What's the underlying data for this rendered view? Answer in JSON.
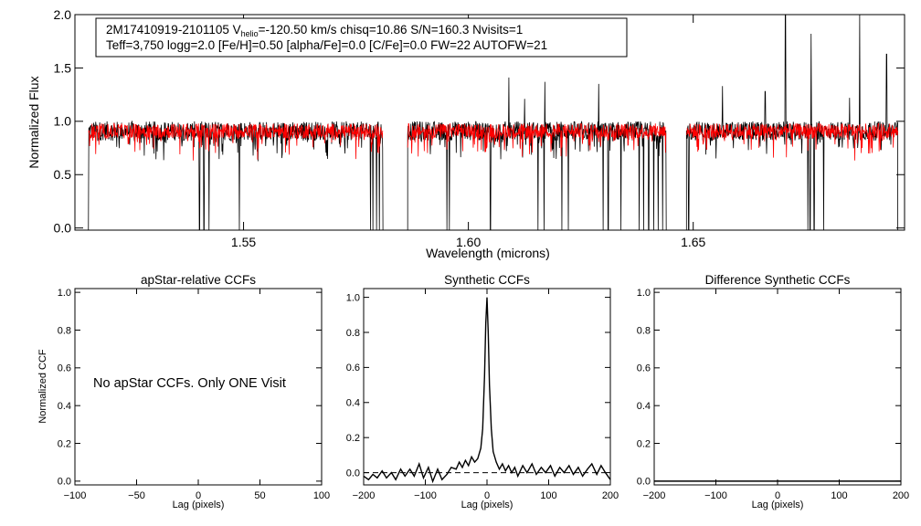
{
  "chart_data": [
    {
      "type": "line",
      "id": "spectrum",
      "info_line1_parts": [
        "2M17410919-2101105  V",
        "helio",
        "=-120.50 km/s  chisq=10.86  S/N=160.3  Nvisits=1"
      ],
      "info_line2": "Teff=3,750 logg=2.0 [Fe/H]=0.50 [alpha/Fe]=0.0 [C/Fe]=0.0 FW=22 AUTOFW=21",
      "xlabel": "Wavelength (microns)",
      "ylabel": "Normalized Flux",
      "xlim": [
        1.5125,
        1.697
      ],
      "ylim": [
        -0.02,
        2.0
      ],
      "xticks": [
        1.55,
        1.6,
        1.65
      ],
      "xtick_labels": [
        "1.55",
        "1.60",
        "1.65"
      ],
      "yticks": [
        0.0,
        0.5,
        1.0,
        1.5,
        2.0
      ],
      "ytick_labels": [
        "0.0",
        "0.5",
        "1.0",
        "1.5",
        "2.0"
      ],
      "chips": [
        [
          1.5155,
          1.581
        ],
        [
          1.5865,
          1.644
        ],
        [
          1.6485,
          1.6955
        ]
      ],
      "series": [
        {
          "role": "observed",
          "color": "#000000",
          "level": 0.91,
          "noise": 0.09,
          "deep_lines": [
            1.5155,
            1.5402,
            1.5412,
            1.5423,
            1.5491,
            1.5782,
            1.5788,
            1.5796,
            1.5802,
            1.5952,
            1.5958,
            1.6049,
            1.6155,
            1.6168,
            1.6208,
            1.6222,
            1.63,
            1.6311,
            1.6339,
            1.638,
            1.639,
            1.6401,
            1.6412,
            1.6422,
            1.6432,
            1.649,
            1.6755,
            1.676,
            1.6769,
            1.679
          ],
          "spikes": [
            [
              1.609,
              1.41
            ],
            [
              1.6125,
              1.21
            ],
            [
              1.617,
              1.37
            ],
            [
              1.629,
              1.35
            ],
            [
              1.6565,
              1.33
            ],
            [
              1.666,
              1.28
            ],
            [
              1.6705,
              2.0
            ],
            [
              1.6762,
              1.82
            ],
            [
              1.6848,
              1.22
            ],
            [
              1.687,
              2.0
            ],
            [
              1.693,
              1.63
            ]
          ]
        },
        {
          "role": "synthetic",
          "color": "#ff0000",
          "level": 0.91,
          "noise": 0.07
        }
      ]
    },
    {
      "type": "line",
      "id": "apstar-ccf",
      "title": "apStar-relative CCFs",
      "xlabel": "Lag (pixels)",
      "ylabel": "Normalized CCF",
      "xlim": [
        -100,
        100
      ],
      "ylim": [
        -0.02,
        1.02
      ],
      "xticks": [
        -100,
        -50,
        0,
        50,
        100
      ],
      "xtick_labels": [
        "−100",
        "−50",
        "0",
        "50",
        "100"
      ],
      "yticks": [
        0.0,
        0.2,
        0.4,
        0.6,
        0.8,
        1.0
      ],
      "ytick_labels": [
        "0.0",
        "0.2",
        "0.4",
        "0.6",
        "0.8",
        "1.0"
      ],
      "annotation": "No apStar CCFs.  Only ONE Visit",
      "series": []
    },
    {
      "type": "line",
      "id": "synthetic-ccf",
      "title": "Synthetic CCFs",
      "xlabel": "Lag (pixels)",
      "xlim": [
        -200,
        200
      ],
      "ylim": [
        -0.07,
        1.05
      ],
      "xticks": [
        -200,
        -100,
        0,
        100,
        200
      ],
      "xtick_labels": [
        "−200",
        "−100",
        "0",
        "100",
        "200"
      ],
      "yticks": [
        0.0,
        0.2,
        0.4,
        0.6,
        0.8,
        1.0
      ],
      "ytick_labels": [
        "0.0",
        "0.2",
        "0.4",
        "0.6",
        "0.8",
        "1.0"
      ],
      "zero_line": 0.0,
      "series": [
        {
          "color": "#000000",
          "x": [
            -200,
            -192,
            -185,
            -178,
            -170,
            -163,
            -155,
            -148,
            -140,
            -133,
            -125,
            -118,
            -110,
            -103,
            -95,
            -88,
            -80,
            -73,
            -65,
            -58,
            -50,
            -45,
            -40,
            -35,
            -30,
            -25,
            -20,
            -15,
            -10,
            -7,
            -4,
            -2,
            0,
            2,
            4,
            7,
            10,
            15,
            20,
            25,
            30,
            35,
            40,
            45,
            50,
            58,
            65,
            73,
            80,
            88,
            95,
            103,
            110,
            118,
            125,
            133,
            140,
            148,
            155,
            163,
            170,
            178,
            185,
            192,
            200
          ],
          "y": [
            -0.02,
            -0.04,
            -0.01,
            -0.03,
            0.01,
            -0.03,
            0.0,
            -0.04,
            0.02,
            -0.02,
            0.02,
            -0.02,
            0.05,
            -0.03,
            0.03,
            -0.05,
            0.02,
            -0.04,
            -0.01,
            0.03,
            0.02,
            0.06,
            0.03,
            0.07,
            0.04,
            0.09,
            0.06,
            0.08,
            0.14,
            0.25,
            0.55,
            0.85,
            1.0,
            0.8,
            0.5,
            0.25,
            0.12,
            0.06,
            0.02,
            0.05,
            0.01,
            0.04,
            0.0,
            0.03,
            -0.02,
            0.04,
            0.0,
            0.05,
            -0.01,
            0.03,
            0.0,
            0.04,
            -0.02,
            0.03,
            0.0,
            0.04,
            -0.01,
            0.03,
            -0.02,
            0.02,
            0.05,
            -0.01,
            0.04,
            0.0,
            -0.04
          ]
        }
      ]
    },
    {
      "type": "line",
      "id": "difference-ccf",
      "title": "Difference Synthetic CCFs",
      "xlabel": "Lag (pixels)",
      "xlim": [
        -200,
        200
      ],
      "ylim": [
        -0.02,
        1.02
      ],
      "xticks": [
        -200,
        -100,
        0,
        100,
        200
      ],
      "xtick_labels": [
        "−200",
        "−100",
        "0",
        "100",
        "200"
      ],
      "yticks": [
        0.0,
        0.2,
        0.4,
        0.6,
        0.8,
        1.0
      ],
      "ytick_labels": [
        "0.0",
        "0.2",
        "0.4",
        "0.6",
        "0.8",
        "1.0"
      ],
      "flat_line": 0.0,
      "series": []
    }
  ]
}
